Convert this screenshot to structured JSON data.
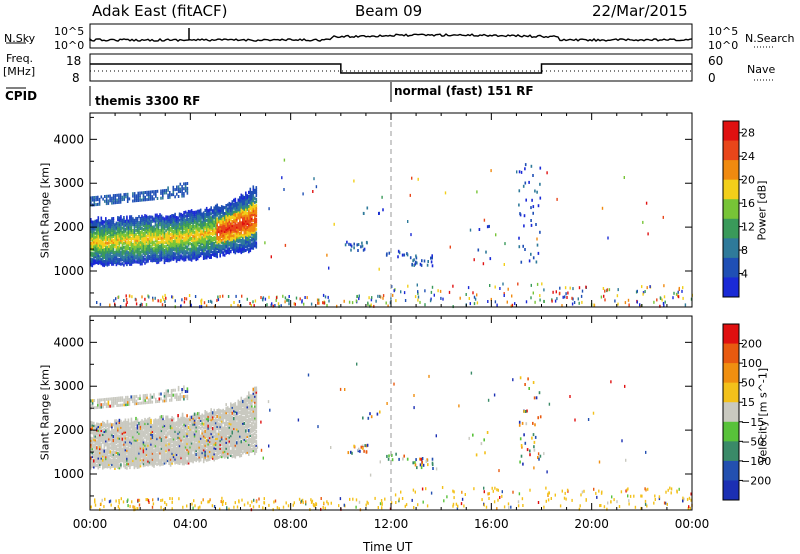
{
  "header": {
    "radar": "Adak East (fitACF)",
    "beam": "Beam 09",
    "date": "22/Mar/2015"
  },
  "noise_panel": {
    "left_label": "N.Sky",
    "right_label": "N.Search",
    "tick_top": "10^5",
    "tick_bottom": "10^0"
  },
  "freq_panel": {
    "left_label_1": "Freq.",
    "left_label_2": "[MHz]",
    "right_label": "Nave",
    "left_ticks": [
      "18",
      "8"
    ],
    "right_ticks": [
      "60",
      "0"
    ]
  },
  "cpid_panel": {
    "label": "CPID",
    "segments": [
      "themis 3300 RF",
      "normal (fast) 151 RF"
    ]
  },
  "colors": {
    "power": [
      "#1a2ad6",
      "#1f4fb5",
      "#2f7a9a",
      "#3a9a5a",
      "#77c437",
      "#f2cf1a",
      "#f08a10",
      "#e8461a",
      "#e01010"
    ],
    "velocity": [
      "#1b2fb3",
      "#2350b0",
      "#3a8a68",
      "#58c23a",
      "#c9c9c0",
      "#f3c11a",
      "#f08f10",
      "#e85a10",
      "#e01010"
    ]
  },
  "chart_data": [
    {
      "type": "heatmap",
      "name": "power",
      "ylabel": "Slant Range [km]",
      "xlabel": "Time UT",
      "x_ticks": [
        "00:00",
        "04:00",
        "08:00",
        "12:00",
        "16:00",
        "20:00",
        "00:00"
      ],
      "y_ticks": [
        1000,
        2000,
        3000,
        4000
      ],
      "ylim": [
        180,
        4600
      ],
      "xlim_hours": [
        0,
        24
      ],
      "colorbar": {
        "label": "Power [dB]",
        "ticks": [
          4,
          8,
          12,
          16,
          20,
          24,
          28
        ],
        "range": [
          0,
          30
        ]
      },
      "regions": [
        {
          "t0": 0.0,
          "t1": 6.6,
          "r_low0": 1150,
          "r_low1": 1500,
          "r_high0": 2300,
          "r_high1": 2900,
          "core": "#3a9a5a"
        },
        {
          "t0": 0.0,
          "t1": 3.9,
          "r_low0": 2450,
          "r_low1": 2650,
          "r_high0": 2800,
          "r_high1": 3200,
          "core": "#1f4fb5"
        }
      ]
    },
    {
      "type": "heatmap",
      "name": "velocity",
      "ylabel": "Slant Range [km]",
      "xlabel": "Time UT",
      "x_ticks": [
        "00:00",
        "04:00",
        "08:00",
        "12:00",
        "16:00",
        "20:00",
        "00:00"
      ],
      "y_ticks": [
        1000,
        2000,
        3000,
        4000
      ],
      "ylim": [
        180,
        4600
      ],
      "xlim_hours": [
        0,
        24
      ],
      "colorbar": {
        "label": "Velocity [m s^-1]",
        "ticks": [
          200,
          100,
          50,
          15,
          -15,
          -50,
          -100,
          -200
        ]
      }
    }
  ],
  "footer": {
    "xlabel": "Time UT"
  }
}
